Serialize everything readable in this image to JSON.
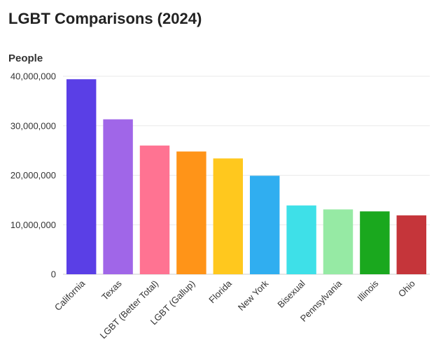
{
  "chart_data": {
    "type": "bar",
    "title": "LGBT Comparisons (2024)",
    "ylabel": "People",
    "xlabel": "",
    "ylim": [
      0,
      40000000
    ],
    "yticks": [
      0,
      10000000,
      20000000,
      30000000,
      40000000
    ],
    "ytick_labels": [
      "0",
      "10,000,000",
      "20,000,000",
      "30,000,000",
      "40,000,000"
    ],
    "grid": true,
    "legend": "none",
    "categories": [
      "California",
      "Texas",
      "LGBT (Better Total)",
      "LGBT (Gallup)",
      "Florida",
      "New York",
      "Bisexual",
      "Pennsylvania",
      "Illinois",
      "Ohio"
    ],
    "values": [
      39400000,
      31300000,
      26000000,
      24800000,
      23400000,
      19900000,
      13900000,
      13100000,
      12700000,
      11900000
    ],
    "colors": [
      "#5a3fe6",
      "#a066e8",
      "#ff7392",
      "#ff9418",
      "#ffc81e",
      "#30aef0",
      "#3ee0e8",
      "#96eaa4",
      "#1aa81e",
      "#c5353a"
    ]
  }
}
